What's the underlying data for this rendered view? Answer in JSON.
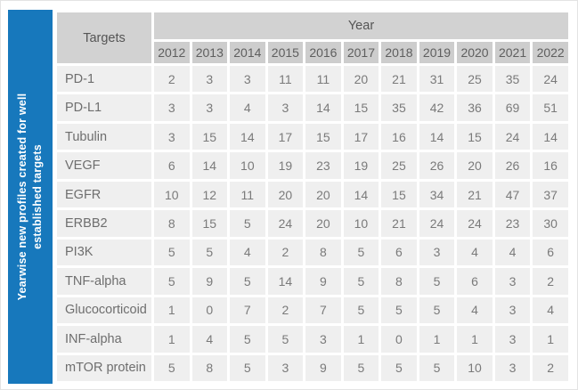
{
  "sidebar": {
    "label_lines": [
      "Yearwise new profiles created for well",
      "established targets"
    ],
    "background_color": "#1778BC",
    "text_color": "#FFFFFF"
  },
  "colors": {
    "header_bg": "#D2D2D2",
    "years_bg": "#CDCDCD",
    "cell_bg": "#EFEFEF",
    "header_text": "#555555",
    "cell_text": "#7A7A7A",
    "accent_blue": "#1778BC"
  },
  "chart_data": {
    "type": "table",
    "title": "Yearwise new profiles created for well established targets",
    "row_header_label": "Targets",
    "column_group_label": "Year",
    "columns": [
      "2012",
      "2013",
      "2014",
      "2015",
      "2016",
      "2017",
      "2018",
      "2019",
      "2020",
      "2021",
      "2022"
    ],
    "rows": [
      {
        "target": "PD-1",
        "values": [
          2,
          3,
          3,
          11,
          11,
          20,
          21,
          31,
          25,
          35,
          24
        ]
      },
      {
        "target": "PD-L1",
        "values": [
          3,
          3,
          4,
          3,
          14,
          15,
          35,
          42,
          36,
          69,
          51
        ]
      },
      {
        "target": "Tubulin",
        "values": [
          3,
          15,
          14,
          17,
          15,
          17,
          16,
          14,
          15,
          24,
          14
        ]
      },
      {
        "target": "VEGF",
        "values": [
          6,
          14,
          10,
          19,
          23,
          19,
          25,
          26,
          20,
          26,
          16
        ]
      },
      {
        "target": "EGFR",
        "values": [
          10,
          12,
          11,
          20,
          20,
          14,
          15,
          34,
          21,
          47,
          37
        ]
      },
      {
        "target": "ERBB2",
        "values": [
          8,
          15,
          5,
          24,
          20,
          10,
          21,
          24,
          24,
          23,
          30
        ]
      },
      {
        "target": "PI3K",
        "values": [
          5,
          5,
          4,
          2,
          8,
          5,
          6,
          3,
          4,
          4,
          6
        ]
      },
      {
        "target": "TNF-alpha",
        "values": [
          5,
          9,
          5,
          14,
          9,
          5,
          8,
          5,
          6,
          3,
          2
        ]
      },
      {
        "target": "Glucocorticoid",
        "values": [
          1,
          0,
          7,
          2,
          7,
          5,
          5,
          5,
          4,
          3,
          4
        ]
      },
      {
        "target": "INF-alpha",
        "values": [
          1,
          4,
          5,
          5,
          3,
          1,
          0,
          1,
          1,
          3,
          1
        ]
      },
      {
        "target": "mTOR protein",
        "values": [
          5,
          8,
          5,
          3,
          9,
          5,
          5,
          5,
          10,
          3,
          2
        ]
      }
    ]
  }
}
